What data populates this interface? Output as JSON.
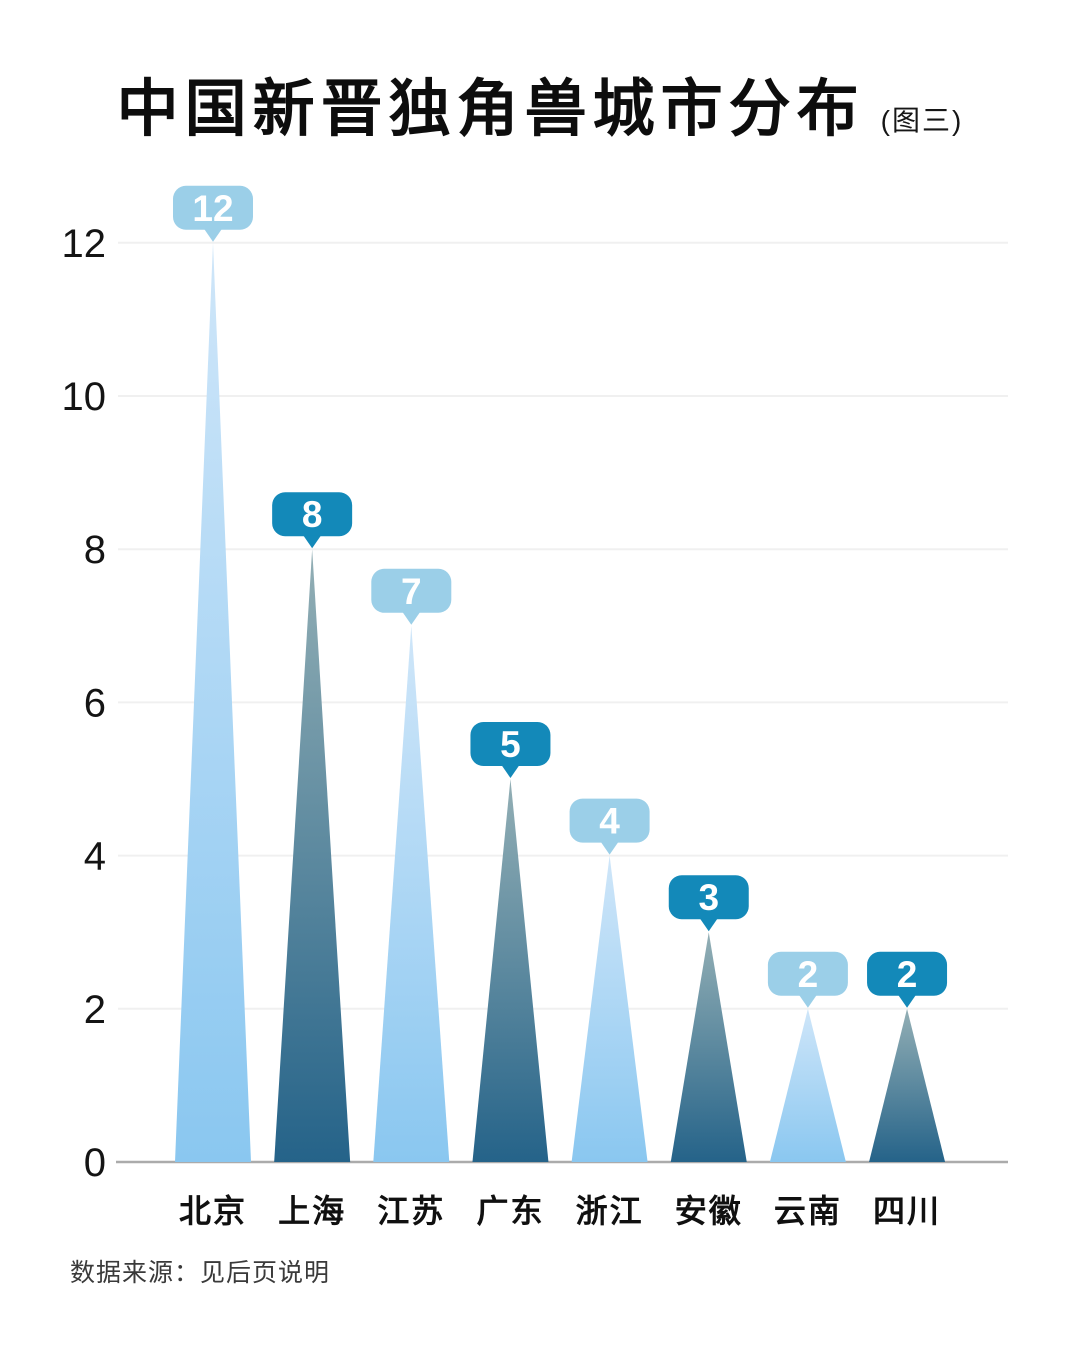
{
  "header": {
    "title": "中国新晋独角兽城市分布",
    "subtitle": "(图三)"
  },
  "footer": {
    "source_note": "数据来源：见后页说明"
  },
  "chart_data": {
    "type": "bar",
    "shape": "triangle-peak",
    "title": "中国新晋独角兽城市分布 (图三)",
    "categories": [
      "北京",
      "上海",
      "江苏",
      "广东",
      "浙江",
      "安徽",
      "云南",
      "四川"
    ],
    "values": [
      12,
      8,
      7,
      5,
      4,
      3,
      2,
      2
    ],
    "value_labels": [
      "12",
      "8",
      "7",
      "5",
      "4",
      "3",
      "2",
      "2"
    ],
    "palette_sequence": [
      "light",
      "dark",
      "light",
      "dark",
      "light",
      "dark",
      "light",
      "dark"
    ],
    "xlabel": "",
    "ylabel": "",
    "ylim": [
      0,
      12
    ],
    "yticks": [
      0,
      2,
      4,
      6,
      8,
      10,
      12
    ],
    "grid": true,
    "legend": false,
    "annotation_style": "rounded tooltip badge with pointer above each peak",
    "colors": {
      "light_triangle_top": "#cfe6f9",
      "light_triangle_bottom": "#8ac7f0",
      "dark_triangle_top": "#93afb5",
      "dark_triangle_bottom": "#256389",
      "light_badge": "#9bcfe8",
      "dark_badge": "#1389b9",
      "badge_text": "#ffffff",
      "gridline": "#f0f0f0",
      "axis_line": "#ababab",
      "tick_label": "#141414",
      "category_label": "#101010"
    }
  }
}
